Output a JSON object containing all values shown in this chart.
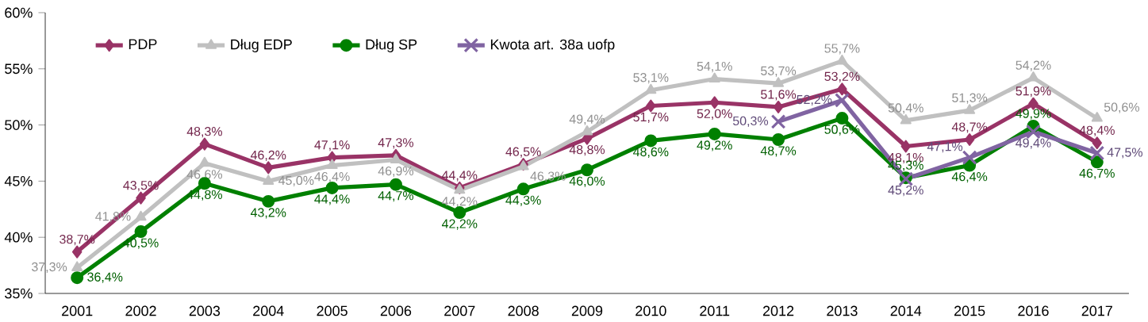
{
  "chart_data": {
    "type": "line",
    "categories": [
      "2001",
      "2002",
      "2003",
      "2004",
      "2005",
      "2006",
      "2007",
      "2008",
      "2009",
      "2010",
      "2011",
      "2012",
      "2013",
      "2014",
      "2015",
      "2016",
      "2017"
    ],
    "ylim": [
      35,
      60
    ],
    "yticks": [
      {
        "value": 35,
        "label": "35%"
      },
      {
        "value": 40,
        "label": "40%"
      },
      {
        "value": 45,
        "label": "45%"
      },
      {
        "value": 50,
        "label": "50%"
      },
      {
        "value": 55,
        "label": "55%"
      },
      {
        "value": 60,
        "label": "60%"
      }
    ],
    "legend": "top left",
    "grid": false,
    "line_style": "solid",
    "series": [
      {
        "name": "PDP",
        "color": "#993366",
        "marker": "diamond",
        "values": [
          38.7,
          43.5,
          48.3,
          46.2,
          47.1,
          47.3,
          44.4,
          46.5,
          48.8,
          51.7,
          52.0,
          51.6,
          53.2,
          48.1,
          48.7,
          51.9,
          48.4
        ],
        "value_labels": [
          "38,7%",
          "43,5%",
          "48,3%",
          "46,2%",
          "47,1%",
          "47,3%",
          "44,4%",
          "46,5%",
          "48,8%",
          "51,7%",
          "52,0%",
          "51,6%",
          "53,2%",
          "48,1%",
          "48,7%",
          "51,9%",
          "48,4%"
        ]
      },
      {
        "name": "Dług EDP",
        "color": "#c0c0c0",
        "marker": "triangle",
        "values": [
          37.3,
          41.8,
          46.6,
          45.0,
          46.4,
          46.9,
          44.2,
          46.3,
          49.4,
          53.1,
          54.1,
          53.7,
          55.7,
          50.4,
          51.3,
          54.2,
          50.6
        ],
        "value_labels": [
          "37,3%",
          "41,8%",
          "46,6%",
          "45,0%",
          "46,4%",
          "46,9%",
          "44,2%",
          "46,3%",
          "49,4%",
          "53,1%",
          "54,1%",
          "53,7%",
          "55,7%",
          "50,4%",
          "51,3%",
          "54,2%",
          "50,6%"
        ]
      },
      {
        "name": "Dług SP",
        "color": "#008000",
        "marker": "circle",
        "values": [
          36.4,
          40.5,
          44.8,
          43.2,
          44.4,
          44.7,
          42.2,
          44.3,
          46.0,
          48.6,
          49.2,
          48.7,
          50.6,
          45.3,
          46.4,
          49.9,
          46.7
        ],
        "value_labels": [
          "36,4%",
          "40,5%",
          "44,8%",
          "43,2%",
          "44,4%",
          "44,7%",
          "42,2%",
          "44,3%",
          "46,0%",
          "48,6%",
          "49,2%",
          "48,7%",
          "50,6%",
          "45,3%",
          "46,4%",
          "49,9%",
          "46,7%"
        ]
      },
      {
        "name": "Kwota art. 38a uofp",
        "color": "#8064a2",
        "marker": "cross",
        "values": [
          null,
          null,
          null,
          null,
          null,
          null,
          null,
          null,
          null,
          null,
          null,
          50.3,
          52.2,
          45.2,
          47.1,
          49.4,
          47.5
        ],
        "value_labels": [
          null,
          null,
          null,
          null,
          null,
          null,
          null,
          null,
          null,
          null,
          null,
          "50,3%",
          "52,2%",
          "45,2%",
          "47,1%",
          "49,4%",
          "47,5%"
        ]
      }
    ]
  }
}
